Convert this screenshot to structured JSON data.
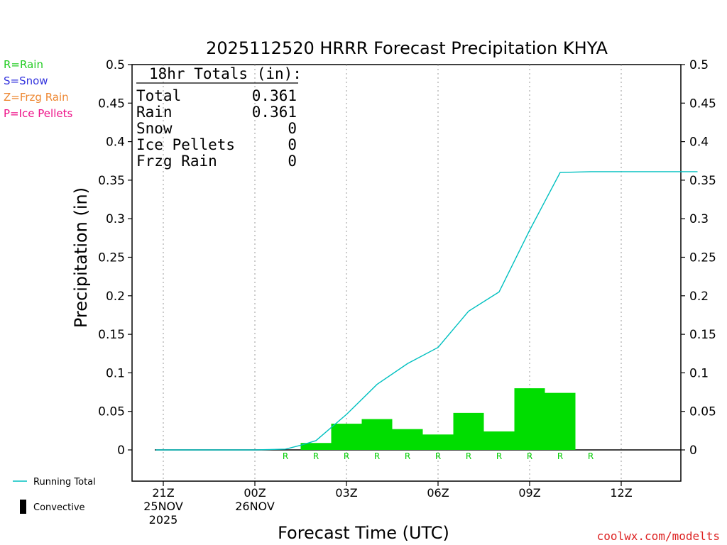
{
  "chart_data": {
    "type": "bar",
    "title": "2025112520 HRRR Forecast Precipitation KHYA",
    "xlabel": "Forecast Time (UTC)",
    "ylabel": "Precipitation (in)",
    "ylim": [
      -0.04,
      0.5
    ],
    "yticks": [
      0,
      0.05,
      0.1,
      0.15,
      0.2,
      0.25,
      0.3,
      0.35,
      0.4,
      0.45,
      0.5
    ],
    "ytick_labels": [
      "0",
      "0.05",
      "0.1",
      "0.15",
      "0.2",
      "0.25",
      "0.3",
      "0.35",
      "0.4",
      "0.45",
      "0.5"
    ],
    "xlim": [
      -0.35,
      17.5
    ],
    "xticks": [
      {
        "hour": 0,
        "lines": [
          "21Z",
          "25NOV",
          "2025"
        ]
      },
      {
        "hour": 3,
        "lines": [
          "00Z",
          "26NOV"
        ]
      },
      {
        "hour": 6,
        "lines": [
          "03Z"
        ]
      },
      {
        "hour": 9,
        "lines": [
          "06Z"
        ]
      },
      {
        "hour": 12,
        "lines": [
          "09Z"
        ]
      },
      {
        "hour": 15,
        "lines": [
          "12Z"
        ]
      }
    ],
    "grid": "vertical dotted",
    "bar_series": {
      "hours": [
        5,
        6,
        7,
        8,
        9,
        10,
        11,
        12,
        13
      ],
      "values": [
        0.009,
        0.034,
        0.04,
        0.027,
        0.02,
        0.048,
        0.024,
        0.08,
        0.074
      ],
      "color": "#00dd00"
    },
    "running_total": {
      "name": "Running Total",
      "x": [
        -0.25,
        3,
        4,
        4.5,
        5,
        6,
        7,
        8,
        9,
        10,
        11,
        12,
        13,
        14,
        17.5
      ],
      "y": [
        0,
        0,
        0.001,
        0.006,
        0.012,
        0.046,
        0.085,
        0.112,
        0.133,
        0.18,
        0.205,
        0.285,
        0.36,
        0.361,
        0.361
      ],
      "color": "#00c0c0"
    },
    "precip_type_markers": {
      "hours": [
        4,
        5,
        6,
        7,
        8,
        9,
        10,
        11,
        12,
        13,
        14
      ],
      "label": "R",
      "color": "#00cc00"
    },
    "totals_box": {
      "heading": "18hr Totals (in):",
      "rows": [
        {
          "label": "Total",
          "value": "0.361"
        },
        {
          "label": "Rain",
          "value": "0.361"
        },
        {
          "label": "Snow",
          "value": "0"
        },
        {
          "label": "Ice Pellets",
          "value": "0"
        },
        {
          "label": "Frzg Rain",
          "value": "0"
        }
      ]
    },
    "type_legend": [
      {
        "text": "R=Rain",
        "color": "#22cc22"
      },
      {
        "text": "S=Snow",
        "color": "#3333dd"
      },
      {
        "text": "Z=Frzg Rain",
        "color": "#ee8833"
      },
      {
        "text": "P=Ice Pellets",
        "color": "#ee1188"
      }
    ],
    "bottom_legend": [
      {
        "text": "Running Total",
        "kind": "line",
        "color": "#00c0c0"
      },
      {
        "text": "Convective",
        "kind": "bar",
        "color": "#000000"
      }
    ],
    "credit": {
      "text": "coolwx.com/modelts",
      "color": "#dd2222"
    }
  }
}
